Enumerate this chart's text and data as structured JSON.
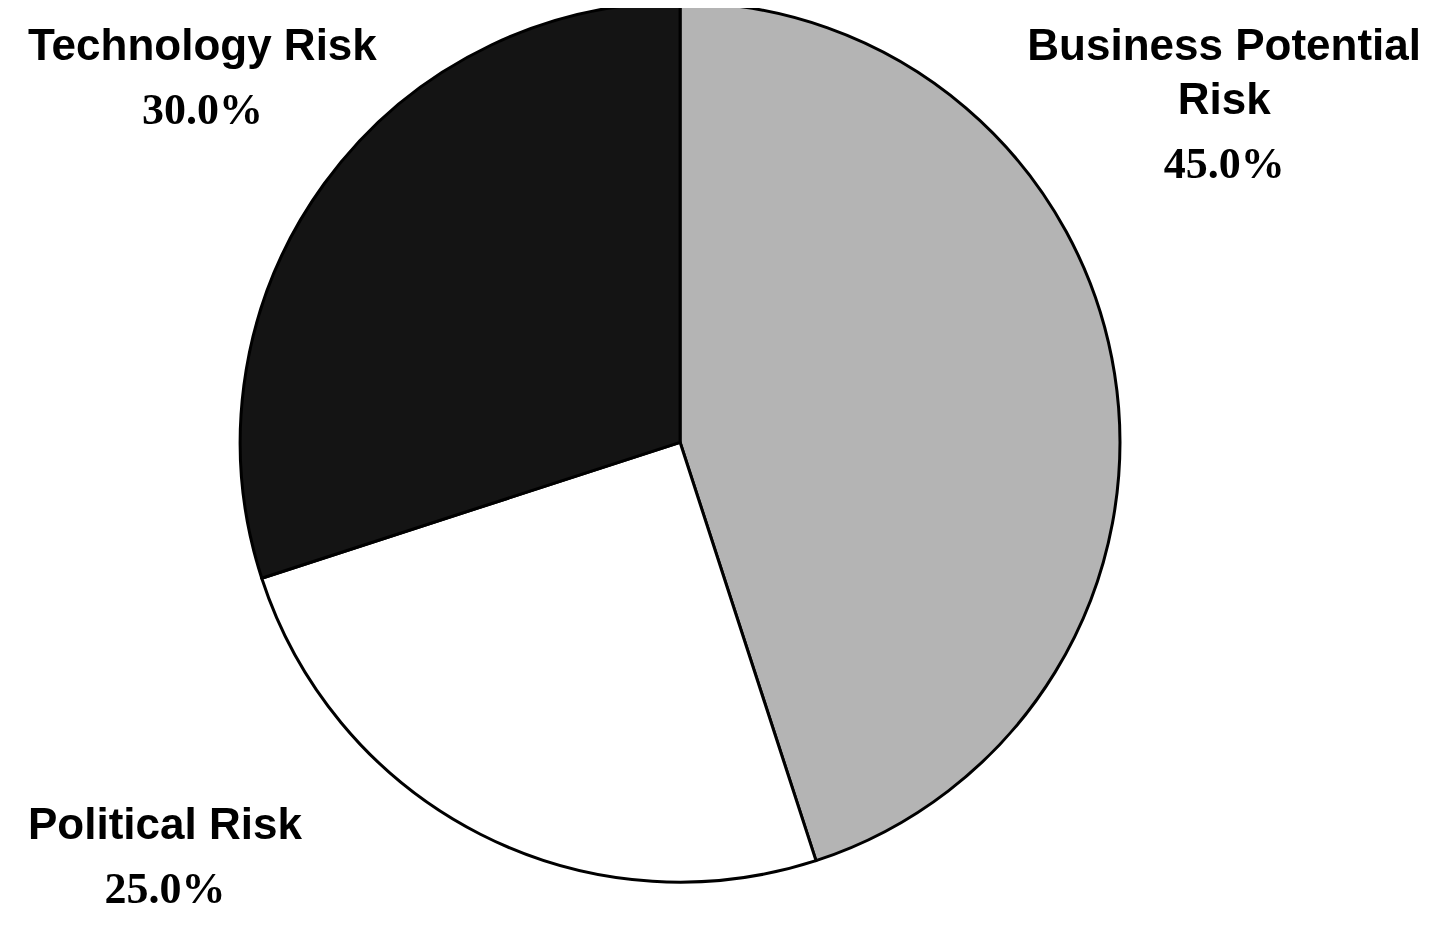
{
  "chart_data": {
    "type": "pie",
    "categories": [
      "Business Potential Risk",
      "Political Risk",
      "Technology Risk"
    ],
    "values": [
      45,
      25,
      30
    ],
    "value_labels": [
      "45.0%",
      "25.0%",
      "30.0%"
    ],
    "colors": [
      "#b4b4b4",
      "#ffffff",
      "#141414"
    ]
  }
}
